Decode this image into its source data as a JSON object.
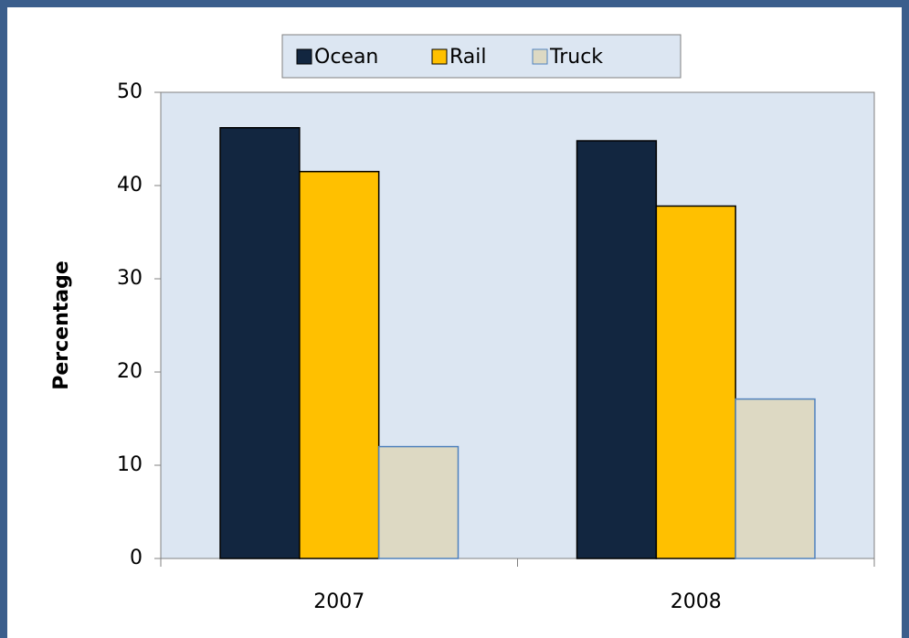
{
  "chart_data": {
    "type": "bar",
    "categories": [
      "2007",
      "2008"
    ],
    "series": [
      {
        "name": "Ocean",
        "color": "#122640",
        "edgecolor": "#000000",
        "values": [
          46.2,
          44.8
        ]
      },
      {
        "name": "Rail",
        "color": "#ffc000",
        "edgecolor": "#000000",
        "values": [
          41.5,
          37.8
        ]
      },
      {
        "name": "Truck",
        "color": "#ddd9c3",
        "edgecolor": "#4f81bd",
        "values": [
          12.0,
          17.1
        ]
      }
    ],
    "ylabel": "Percentage",
    "ylim": [
      0,
      50
    ],
    "yticks": [
      0,
      10,
      20,
      30,
      40,
      50
    ],
    "legend": "top"
  }
}
